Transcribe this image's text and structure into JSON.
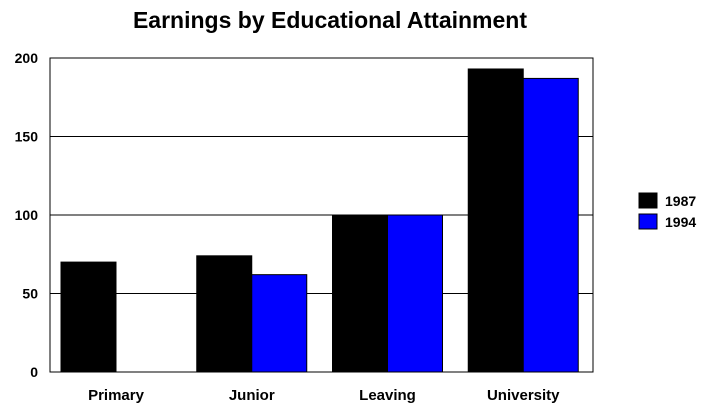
{
  "chart_data": {
    "type": "bar",
    "title": "Earnings by Educational Attainment",
    "xlabel": "",
    "ylabel": "",
    "categories": [
      "Primary",
      "Junior",
      "Leaving",
      "University"
    ],
    "series": [
      {
        "name": "1987",
        "color": "#000000",
        "values": [
          70,
          74,
          100,
          193
        ]
      },
      {
        "name": "1994",
        "color": "#0000ff",
        "values": [
          null,
          62,
          100,
          187
        ]
      }
    ],
    "ylim": [
      0,
      200
    ],
    "yticks": [
      0,
      50,
      100,
      150,
      200
    ],
    "grid": true,
    "legend_position": "right"
  }
}
